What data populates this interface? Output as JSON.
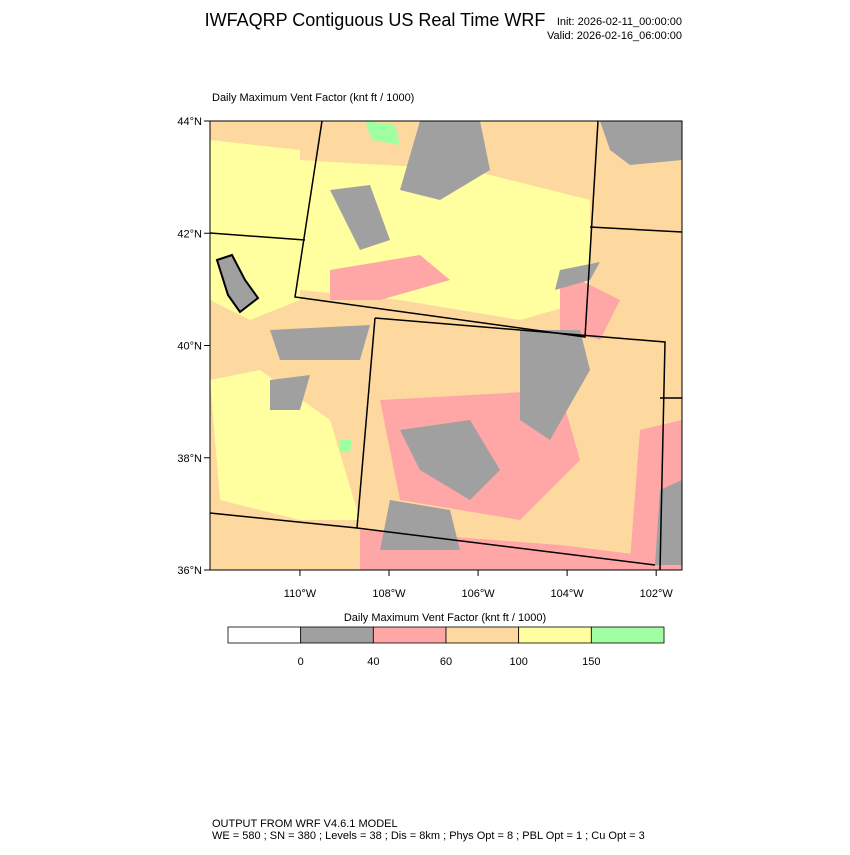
{
  "header": {
    "title": "IWFAQRP Contiguous US Real Time WRF",
    "init": "Init: 2026-02-11_00:00:00",
    "valid": "Valid: 2026-02-16_06:00:00"
  },
  "map": {
    "label": "Daily Maximum Vent Factor   (knt ft / 1000)",
    "lonlim": [
      -112.02,
      -101.42
    ],
    "latlim": [
      36,
      44
    ],
    "latticks": [
      {
        "value": 44,
        "label": "44°N"
      },
      {
        "value": 42,
        "label": "42°N"
      },
      {
        "value": 40,
        "label": "40°N"
      },
      {
        "value": 38,
        "label": "38°N"
      },
      {
        "value": 36,
        "label": "36°N"
      }
    ],
    "lonticks": [
      {
        "value": -110,
        "label": "110°W"
      },
      {
        "value": -108,
        "label": "108°W"
      },
      {
        "value": -106,
        "label": "106°W"
      },
      {
        "value": -104,
        "label": "104°W"
      },
      {
        "value": -102,
        "label": "102°W"
      }
    ]
  },
  "colorbar": {
    "title": "Daily Maximum Vent Factor  (knt ft / 1000)",
    "colors": [
      "#ffffff",
      "#a0a0a0",
      "#ffa6a6",
      "#fdd9a0",
      "#ffff9f",
      "#a0ffa0"
    ],
    "ticks": [
      0,
      40,
      60,
      100,
      150
    ]
  },
  "footer": {
    "line1": "OUTPUT FROM WRF V4.6.1 MODEL",
    "line2": "WE = 580 ; SN = 380 ; Levels = 38 ; Dis = 8km ; Phys Opt = 8 ; PBL Opt = 1 ; Cu Opt = 3"
  }
}
